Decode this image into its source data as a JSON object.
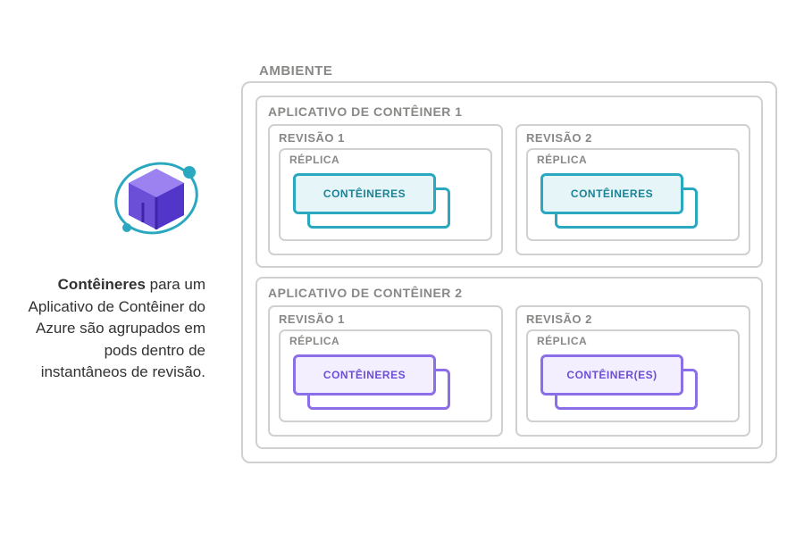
{
  "colors": {
    "gray_text": "#8a8886",
    "gray_border": "#d2d0ce",
    "teal_border": "#2aa8bf",
    "teal_fill": "#e6f5f8",
    "teal_text": "#1b8396",
    "purple_border": "#8a6fe8",
    "purple_fill": "#f3efff",
    "purple_text": "#6b4fd6",
    "body_text": "#323130"
  },
  "description": {
    "bold": "Contêineres",
    "rest": " para um Aplicativo de Contêiner do Azure são agrupados em pods dentro de instantâneos de revisão."
  },
  "environment": {
    "label": "AMBIENTE",
    "apps": [
      {
        "title": "APLICATIVO DE CONTÊINER 1",
        "accent": "teal",
        "revisions": [
          {
            "title": "REVISÃO 1",
            "replica": "RÉPLICA",
            "card": "CONTÊINERES"
          },
          {
            "title": "REVISÃO 2",
            "replica": "RÉPLICA",
            "card": "CONTÊINERES"
          }
        ]
      },
      {
        "title": "APLICATIVO DE CONTÊINER 2",
        "accent": "purple",
        "revisions": [
          {
            "title": "REVISÃO 1",
            "replica": "RÉPLICA",
            "card": "CONTÊINERES"
          },
          {
            "title": "REVISÃO 2",
            "replica": "RÉPLICA",
            "card": "CONTÊINER(ES)"
          }
        ]
      }
    ]
  }
}
